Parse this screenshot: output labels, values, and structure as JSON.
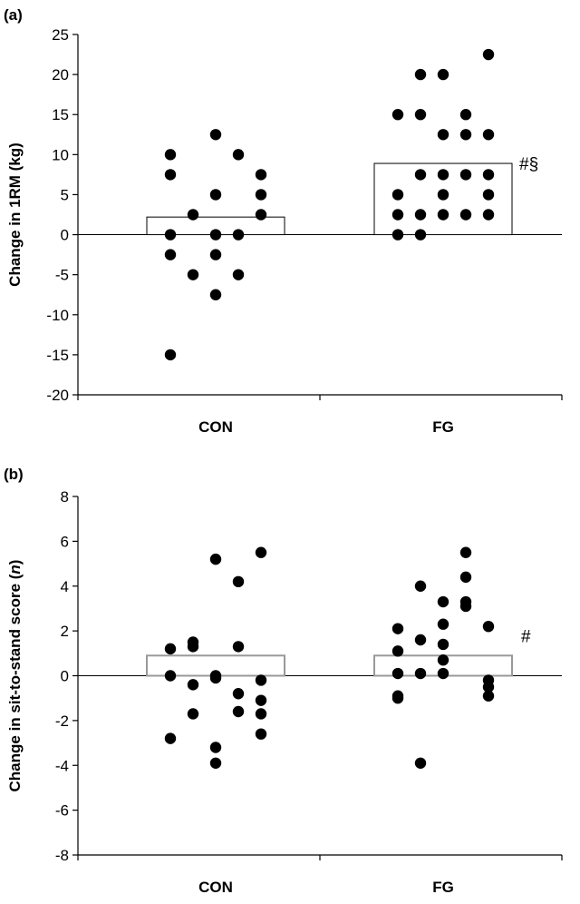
{
  "chart_data": [
    {
      "panel_label": "(a)",
      "type": "scatter",
      "ylabel": "Change in 1RM (kg)",
      "ylabel_parts": [
        {
          "text": "Change in 1RM (kg)",
          "italic": false
        }
      ],
      "ylim": [
        -20,
        25
      ],
      "yticks": [
        -20,
        -15,
        -10,
        -5,
        0,
        5,
        10,
        15,
        20,
        25
      ],
      "categories": [
        "CON",
        "FG"
      ],
      "bars": [
        2.2,
        8.9
      ],
      "annotations": [
        {
          "category": "FG",
          "text": "#§"
        }
      ],
      "points": [
        {
          "category": "CON",
          "offset": -2,
          "y": 10
        },
        {
          "category": "CON",
          "offset": -2,
          "y": 7.5
        },
        {
          "category": "CON",
          "offset": -2,
          "y": 0
        },
        {
          "category": "CON",
          "offset": -2,
          "y": -2.5
        },
        {
          "category": "CON",
          "offset": -1,
          "y": 2.5
        },
        {
          "category": "CON",
          "offset": -1,
          "y": -5
        },
        {
          "category": "CON",
          "offset": 0,
          "y": 12.5
        },
        {
          "category": "CON",
          "offset": 0,
          "y": 5
        },
        {
          "category": "CON",
          "offset": 0,
          "y": 0
        },
        {
          "category": "CON",
          "offset": 0,
          "y": -2.5
        },
        {
          "category": "CON",
          "offset": 0,
          "y": -7.5
        },
        {
          "category": "CON",
          "offset": -2,
          "y": -15
        },
        {
          "category": "CON",
          "offset": 1,
          "y": 10
        },
        {
          "category": "CON",
          "offset": 1,
          "y": 0
        },
        {
          "category": "CON",
          "offset": 1,
          "y": -5
        },
        {
          "category": "CON",
          "offset": 2,
          "y": 7.5
        },
        {
          "category": "CON",
          "offset": 2,
          "y": 5
        },
        {
          "category": "CON",
          "offset": 2,
          "y": 2.5
        },
        {
          "category": "FG",
          "offset": -2,
          "y": 15
        },
        {
          "category": "FG",
          "offset": -2,
          "y": 5
        },
        {
          "category": "FG",
          "offset": -2,
          "y": 2.5
        },
        {
          "category": "FG",
          "offset": -2,
          "y": 0
        },
        {
          "category": "FG",
          "offset": -1,
          "y": 20
        },
        {
          "category": "FG",
          "offset": -1,
          "y": 15
        },
        {
          "category": "FG",
          "offset": -1,
          "y": 7.5
        },
        {
          "category": "FG",
          "offset": -1,
          "y": 2.5
        },
        {
          "category": "FG",
          "offset": -1,
          "y": 0
        },
        {
          "category": "FG",
          "offset": 0,
          "y": 20
        },
        {
          "category": "FG",
          "offset": 0,
          "y": 12.5
        },
        {
          "category": "FG",
          "offset": 0,
          "y": 7.5
        },
        {
          "category": "FG",
          "offset": 0,
          "y": 5
        },
        {
          "category": "FG",
          "offset": 0,
          "y": 2.5
        },
        {
          "category": "FG",
          "offset": 1,
          "y": 15
        },
        {
          "category": "FG",
          "offset": 1,
          "y": 12.5
        },
        {
          "category": "FG",
          "offset": 1,
          "y": 7.5
        },
        {
          "category": "FG",
          "offset": 1,
          "y": 2.5
        },
        {
          "category": "FG",
          "offset": 2,
          "y": 22.5
        },
        {
          "category": "FG",
          "offset": 2,
          "y": 12.5
        },
        {
          "category": "FG",
          "offset": 2,
          "y": 7.5
        },
        {
          "category": "FG",
          "offset": 2,
          "y": 5
        },
        {
          "category": "FG",
          "offset": 2,
          "y": 2.5
        }
      ]
    },
    {
      "panel_label": "(b)",
      "type": "scatter",
      "ylabel": "Change in sit-to-stand score (n)",
      "ylabel_parts": [
        {
          "text": "Change in sit-to-stand score (",
          "italic": false
        },
        {
          "text": "n",
          "italic": true
        },
        {
          "text": ")",
          "italic": false
        }
      ],
      "ylim": [
        -8,
        8
      ],
      "yticks": [
        -8,
        -6,
        -4,
        -2,
        0,
        2,
        4,
        6,
        8
      ],
      "categories": [
        "CON",
        "FG"
      ],
      "bars": [
        0.9,
        0.9
      ],
      "annotations": [
        {
          "category": "FG",
          "text": "#"
        }
      ],
      "points": [
        {
          "category": "CON",
          "offset": -2,
          "y": 1.2
        },
        {
          "category": "CON",
          "offset": -2,
          "y": 0
        },
        {
          "category": "CON",
          "offset": -2,
          "y": -2.8
        },
        {
          "category": "CON",
          "offset": -1,
          "y": 1.5
        },
        {
          "category": "CON",
          "offset": -1,
          "y": 1.3
        },
        {
          "category": "CON",
          "offset": -1,
          "y": -0.4
        },
        {
          "category": "CON",
          "offset": -1,
          "y": -1.7
        },
        {
          "category": "CON",
          "offset": 0,
          "y": 5.2
        },
        {
          "category": "CON",
          "offset": 0,
          "y": 0
        },
        {
          "category": "CON",
          "offset": 0,
          "y": -0.1
        },
        {
          "category": "CON",
          "offset": 0,
          "y": -3.2
        },
        {
          "category": "CON",
          "offset": 0,
          "y": -3.9
        },
        {
          "category": "CON",
          "offset": 1,
          "y": 4.2
        },
        {
          "category": "CON",
          "offset": 1,
          "y": 1.3
        },
        {
          "category": "CON",
          "offset": 1,
          "y": -0.8
        },
        {
          "category": "CON",
          "offset": 1,
          "y": -1.6
        },
        {
          "category": "CON",
          "offset": 2,
          "y": 5.5
        },
        {
          "category": "CON",
          "offset": 2,
          "y": -0.2
        },
        {
          "category": "CON",
          "offset": 2,
          "y": -1.1
        },
        {
          "category": "CON",
          "offset": 2,
          "y": -1.7
        },
        {
          "category": "CON",
          "offset": 2,
          "y": -2.6
        },
        {
          "category": "FG",
          "offset": -2,
          "y": 2.1
        },
        {
          "category": "FG",
          "offset": -2,
          "y": 1.1
        },
        {
          "category": "FG",
          "offset": -2,
          "y": 0.1
        },
        {
          "category": "FG",
          "offset": -2,
          "y": -0.9
        },
        {
          "category": "FG",
          "offset": -2,
          "y": -1.0
        },
        {
          "category": "FG",
          "offset": -1,
          "y": 4.0
        },
        {
          "category": "FG",
          "offset": -1,
          "y": 1.6
        },
        {
          "category": "FG",
          "offset": -1,
          "y": 0.1
        },
        {
          "category": "FG",
          "offset": -1,
          "y": -3.9
        },
        {
          "category": "FG",
          "offset": 0,
          "y": 3.3
        },
        {
          "category": "FG",
          "offset": 0,
          "y": 2.3
        },
        {
          "category": "FG",
          "offset": 0,
          "y": 1.4
        },
        {
          "category": "FG",
          "offset": 0,
          "y": 0.7
        },
        {
          "category": "FG",
          "offset": 0,
          "y": 0.1
        },
        {
          "category": "FG",
          "offset": 1,
          "y": 5.5
        },
        {
          "category": "FG",
          "offset": 1,
          "y": 4.4
        },
        {
          "category": "FG",
          "offset": 1,
          "y": 3.3
        },
        {
          "category": "FG",
          "offset": 1,
          "y": 3.1
        },
        {
          "category": "FG",
          "offset": 2,
          "y": 2.2
        },
        {
          "category": "FG",
          "offset": 2,
          "y": -0.2
        },
        {
          "category": "FG",
          "offset": 2,
          "y": -0.5
        },
        {
          "category": "FG",
          "offset": 2,
          "y": -0.9
        }
      ]
    }
  ]
}
